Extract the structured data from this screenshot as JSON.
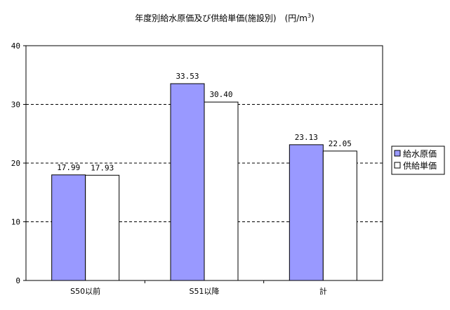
{
  "chart_data": {
    "type": "bar",
    "title": "年度別給水原価及び供給単価(施設別)　(円/m",
    "title_superscript": "3",
    "title_close": ")",
    "categories": [
      "S50以前",
      "S51以降",
      "計"
    ],
    "series": [
      {
        "name": "給水原価",
        "values": [
          17.99,
          33.53,
          23.13
        ],
        "value_labels": [
          "17.99",
          "33.53",
          "23.13"
        ],
        "color": "#9999ff"
      },
      {
        "name": "供給単価",
        "values": [
          17.93,
          30.4,
          22.05
        ],
        "value_labels": [
          "17.93",
          "30.40",
          "22.05"
        ],
        "color": "#ffffff"
      }
    ],
    "ylim": [
      0,
      40
    ],
    "yticks": [
      0,
      10,
      20,
      30,
      40
    ],
    "grid": "dashed-horizontal",
    "legend": "right"
  }
}
